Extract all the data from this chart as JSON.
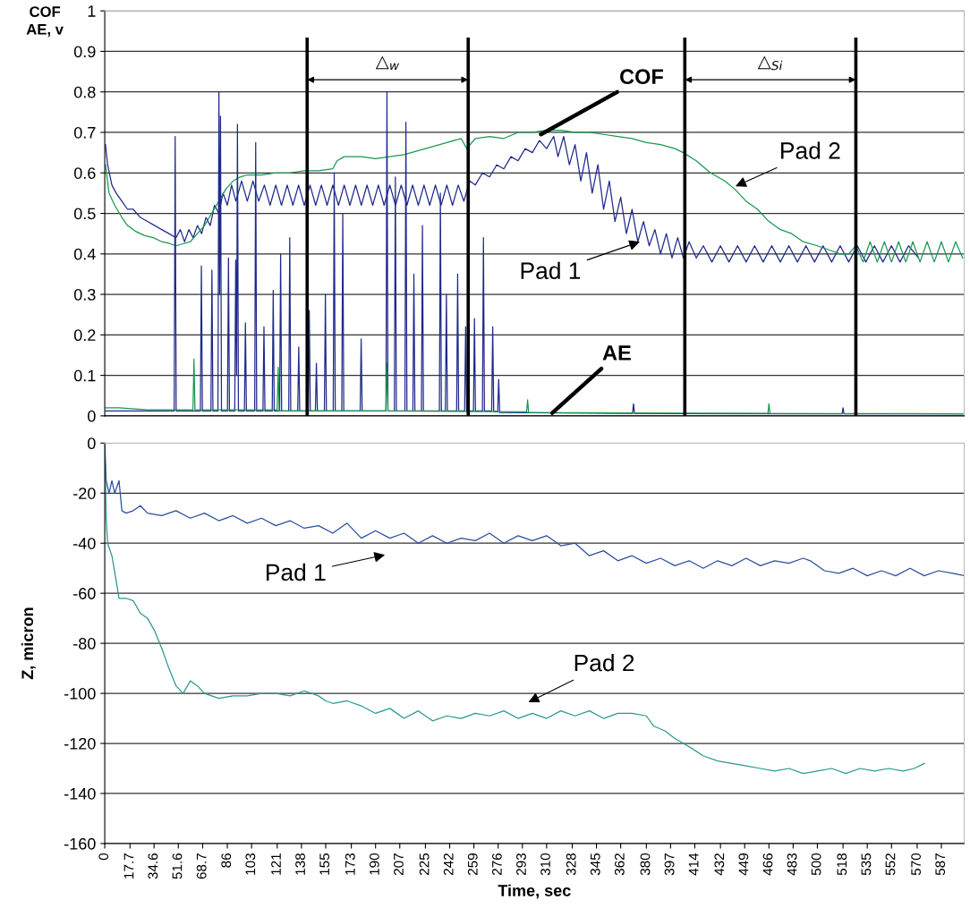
{
  "chart_data": [
    {
      "type": "line",
      "ylabel": "COF\nAE, v",
      "xlim": [
        0,
        603
      ],
      "ylim": [
        0,
        1
      ],
      "yticks": [
        0,
        0.1,
        0.2,
        0.3,
        0.4,
        0.5,
        0.6,
        0.7,
        0.8,
        0.9,
        1
      ],
      "xticks": [
        0,
        17.7,
        34.6,
        51.6,
        68.7,
        86,
        103,
        121,
        138,
        155,
        173,
        190,
        207,
        225,
        242,
        259,
        276,
        293,
        310,
        328,
        345,
        362,
        380,
        397,
        414,
        432,
        449,
        466,
        483,
        500,
        518,
        535,
        552,
        570,
        587
      ],
      "tick_labels": "y",
      "grid": "y",
      "legend": false,
      "marker": "none",
      "line_style": "solid",
      "series": [
        {
          "color": "#1f2a8a",
          "x": [
            0.5,
            2,
            5,
            8,
            12,
            16,
            20,
            25,
            30,
            35,
            40,
            45,
            50,
            53,
            56,
            59,
            62,
            65,
            68,
            71,
            74,
            77,
            80,
            83,
            86,
            89,
            92,
            96,
            100,
            104,
            108,
            112,
            116,
            120,
            124,
            128,
            132,
            136,
            140,
            144,
            148,
            152,
            156,
            160,
            164,
            168,
            172,
            176,
            180,
            184,
            188,
            192,
            196,
            200,
            204,
            208,
            212,
            216,
            220,
            224,
            228,
            232,
            236,
            240,
            244,
            248,
            252,
            256,
            260,
            265,
            270,
            275,
            280,
            285,
            290,
            295,
            300,
            305,
            310,
            315,
            318,
            322,
            326,
            330,
            334,
            338,
            342,
            346,
            350,
            354,
            358,
            362,
            366,
            370,
            374,
            378,
            382,
            386,
            390,
            394,
            398,
            402,
            406,
            410,
            415,
            420,
            426,
            432,
            438,
            444,
            450,
            456,
            462,
            468,
            474,
            480,
            486,
            492,
            498,
            504,
            510,
            516,
            522,
            528,
            534,
            540,
            546,
            552,
            558,
            564,
            571
          ],
          "values": [
            0.67,
            0.62,
            0.57,
            0.55,
            0.53,
            0.51,
            0.51,
            0.49,
            0.48,
            0.47,
            0.46,
            0.45,
            0.44,
            0.46,
            0.43,
            0.46,
            0.44,
            0.47,
            0.45,
            0.49,
            0.47,
            0.52,
            0.5,
            0.55,
            0.52,
            0.57,
            0.53,
            0.58,
            0.53,
            0.58,
            0.53,
            0.57,
            0.52,
            0.57,
            0.52,
            0.57,
            0.52,
            0.57,
            0.52,
            0.57,
            0.52,
            0.57,
            0.52,
            0.57,
            0.52,
            0.57,
            0.52,
            0.57,
            0.52,
            0.57,
            0.52,
            0.57,
            0.52,
            0.57,
            0.52,
            0.57,
            0.52,
            0.57,
            0.52,
            0.57,
            0.52,
            0.57,
            0.52,
            0.57,
            0.52,
            0.57,
            0.53,
            0.58,
            0.57,
            0.6,
            0.59,
            0.62,
            0.61,
            0.64,
            0.63,
            0.66,
            0.65,
            0.68,
            0.66,
            0.69,
            0.64,
            0.69,
            0.62,
            0.67,
            0.58,
            0.65,
            0.55,
            0.62,
            0.51,
            0.58,
            0.48,
            0.54,
            0.45,
            0.51,
            0.43,
            0.48,
            0.42,
            0.46,
            0.4,
            0.45,
            0.39,
            0.44,
            0.39,
            0.43,
            0.39,
            0.42,
            0.38,
            0.42,
            0.38,
            0.42,
            0.38,
            0.42,
            0.38,
            0.42,
            0.38,
            0.42,
            0.38,
            0.42,
            0.38,
            0.42,
            0.38,
            0.42,
            0.38,
            0.42,
            0.38,
            0.42,
            0.38,
            0.42,
            0.38,
            0.42,
            0.39
          ]
        },
        {
          "color": "#1a9850",
          "x": [
            0.5,
            3,
            7,
            12,
            16,
            22,
            28,
            34,
            40,
            46,
            50,
            55,
            60,
            65,
            70,
            75,
            80,
            85,
            90,
            95,
            100,
            110,
            120,
            130,
            140,
            150,
            160,
            163,
            168,
            180,
            190,
            200,
            210,
            220,
            230,
            240,
            250,
            254,
            260,
            270,
            280,
            290,
            300,
            310,
            320,
            330,
            340,
            350,
            360,
            370,
            380,
            390,
            400,
            406,
            415,
            425,
            435,
            442,
            450,
            458,
            466,
            474,
            482,
            490,
            500,
            508,
            516,
            522,
            527,
            532,
            537,
            542,
            547,
            552,
            557,
            562,
            567,
            572,
            577,
            582,
            587,
            592,
            597,
            602
          ],
          "values": [
            0.62,
            0.55,
            0.52,
            0.49,
            0.47,
            0.455,
            0.445,
            0.44,
            0.43,
            0.425,
            0.42,
            0.425,
            0.43,
            0.45,
            0.47,
            0.5,
            0.53,
            0.56,
            0.58,
            0.59,
            0.595,
            0.595,
            0.6,
            0.6,
            0.605,
            0.605,
            0.61,
            0.63,
            0.64,
            0.64,
            0.635,
            0.64,
            0.645,
            0.655,
            0.665,
            0.675,
            0.685,
            0.66,
            0.685,
            0.69,
            0.685,
            0.7,
            0.7,
            0.705,
            0.705,
            0.7,
            0.7,
            0.695,
            0.69,
            0.685,
            0.675,
            0.67,
            0.66,
            0.65,
            0.63,
            0.6,
            0.58,
            0.56,
            0.53,
            0.51,
            0.48,
            0.46,
            0.45,
            0.43,
            0.42,
            0.41,
            0.4,
            0.4,
            0.42,
            0.38,
            0.43,
            0.38,
            0.43,
            0.38,
            0.43,
            0.38,
            0.43,
            0.38,
            0.43,
            0.38,
            0.43,
            0.38,
            0.43,
            0.39
          ]
        },
        {
          "color": "#1f2a8a",
          "x": [
            0.5,
            48.7,
            49.4,
            50.1,
            67.1,
            67.8,
            68.5,
            74.5,
            75.2,
            75.9,
            79.4,
            80.1,
            80.6,
            81.2,
            81.9,
            86.1,
            86.8,
            87.5,
            91.2,
            91.9,
            92.5,
            93.1,
            93.8,
            98,
            98.7,
            99.4,
            105.2,
            105.9,
            106.6,
            111,
            111.7,
            112.4,
            117.5,
            118.2,
            118.9,
            122.7,
            123.4,
            124.1,
            129.1,
            129.8,
            130.5,
            135.4,
            136.1,
            136.8,
            142.8,
            143.5,
            144.2,
            147.8,
            148.5,
            149.2,
            154.1,
            154.8,
            155.5,
            160.3,
            161,
            161.7,
            166.3,
            167,
            167.7,
            179.2,
            179.9,
            180.6,
            197.3,
            198,
            198.7,
            203.2,
            203.9,
            204.6,
            210.6,
            211.3,
            212,
            216.2,
            216.9,
            217.6,
            222.2,
            222.9,
            223.6,
            234.8,
            235.5,
            236.2,
            239,
            239.7,
            240.4,
            246.9,
            247.6,
            248.3,
            252.5,
            253.2,
            253.9,
            258.7,
            259.4,
            260.1,
            265,
            265.7,
            266.4,
            271.5,
            272.2,
            272.9,
            275.7,
            276.4,
            277.1,
            370.3,
            371,
            371.7,
            517.3,
            518,
            518.7,
            602
          ],
          "values": [
            0.012,
            0.012,
            0.69,
            0.012,
            0.012,
            0.37,
            0.012,
            0.012,
            0.36,
            0.012,
            0.012,
            0.8,
            0.3,
            0.74,
            0.012,
            0.012,
            0.39,
            0.012,
            0.012,
            0.385,
            0.1,
            0.72,
            0.012,
            0.012,
            0.23,
            0.012,
            0.012,
            0.675,
            0.012,
            0.012,
            0.22,
            0.012,
            0.012,
            0.31,
            0.012,
            0.012,
            0.4,
            0.012,
            0.012,
            0.44,
            0.012,
            0.012,
            0.17,
            0.012,
            0.012,
            0.26,
            0.012,
            0.012,
            0.13,
            0.012,
            0.012,
            0.3,
            0.012,
            0.012,
            0.6,
            0.012,
            0.012,
            0.5,
            0.012,
            0.012,
            0.19,
            0.012,
            0.012,
            0.8,
            0.012,
            0.012,
            0.59,
            0.012,
            0.012,
            0.725,
            0.012,
            0.012,
            0.35,
            0.012,
            0.012,
            0.47,
            0.012,
            0.012,
            0.55,
            0.012,
            0.012,
            0.3,
            0.012,
            0.012,
            0.35,
            0.012,
            0.012,
            0.22,
            0.012,
            0.012,
            0.24,
            0.012,
            0.012,
            0.44,
            0.012,
            0.012,
            0.22,
            0.012,
            0.01,
            0.09,
            0.008,
            0.006,
            0.03,
            0.006,
            0.005,
            0.02,
            0.005,
            0.005
          ]
        },
        {
          "color": "#1a9850",
          "x": [
            0.5,
            10,
            30,
            61.9,
            62.6,
            63.3,
            121,
            121.7,
            122.4,
            197.3,
            198,
            198.7,
            296,
            296.7,
            297.4,
            465.3,
            466,
            466.7,
            602
          ],
          "values": [
            0.02,
            0.02,
            0.015,
            0.015,
            0.14,
            0.015,
            0.015,
            0.12,
            0.012,
            0.012,
            0.13,
            0.012,
            0.01,
            0.04,
            0.008,
            0.006,
            0.03,
            0.006,
            0.005
          ]
        }
      ],
      "ref_lines": [
        {
          "axis": "x",
          "value": 142,
          "color": "#000000"
        },
        {
          "axis": "x",
          "value": 255,
          "color": "#000000"
        },
        {
          "axis": "x",
          "value": 407,
          "color": "#000000"
        },
        {
          "axis": "x",
          "value": 527,
          "color": "#000000"
        }
      ],
      "annotations": [
        "△$_{w}$",
        "△$_{Si}$",
        {
          "text": "COF",
          "x": 306,
          "y": 0.695
        },
        {
          "text": "AE",
          "x": 314,
          "y": 0.007
        },
        {
          "text": "Pad 2",
          "x": 442.6,
          "y": 0.567
        },
        {
          "text": "Pad 1",
          "x": 375.4,
          "y": 0.43
        }
      ]
    },
    {
      "type": "line",
      "xlabel": "Time, sec",
      "ylabel": "Z, micron",
      "xlim": [
        0,
        603
      ],
      "ylim": [
        -160,
        0
      ],
      "yticks": [
        -160,
        -140,
        -120,
        -100,
        -80,
        -60,
        -40,
        -20,
        0
      ],
      "xticks": [
        0,
        17.7,
        34.6,
        51.6,
        68.7,
        86,
        103,
        121,
        138,
        155,
        173,
        190,
        207,
        225,
        242,
        259,
        276,
        293,
        310,
        328,
        345,
        362,
        380,
        397,
        414,
        432,
        449,
        466,
        483,
        500,
        518,
        535,
        552,
        570,
        587
      ],
      "grid": "y",
      "legend": false,
      "marker": "none",
      "line_style": "solid",
      "series": [
        {
          "color": "#2a4f9e",
          "x": [
            0,
            1,
            3,
            5,
            7,
            10,
            12,
            15,
            20,
            25,
            30,
            40,
            50,
            60,
            70,
            80,
            90,
            100,
            110,
            120,
            130,
            140,
            150,
            160,
            170,
            180,
            190,
            200,
            210,
            220,
            230,
            240,
            250,
            260,
            270,
            280,
            290,
            300,
            310,
            320,
            330,
            340,
            350,
            360,
            370,
            380,
            390,
            400,
            410,
            420,
            430,
            440,
            450,
            460,
            470,
            480,
            490,
            495,
            505,
            515,
            525,
            535,
            545,
            555,
            565,
            575,
            585,
            595,
            603
          ],
          "values": [
            0,
            -15,
            -20,
            -15,
            -20,
            -15,
            -27,
            -28,
            -27,
            -25,
            -28,
            -29,
            -27,
            -30,
            -28,
            -31,
            -29,
            -32,
            -30,
            -33,
            -31,
            -34,
            -33,
            -36,
            -32,
            -38,
            -35,
            -38,
            -36,
            -40,
            -37,
            -40,
            -38,
            -39,
            -36,
            -40,
            -37,
            -39,
            -37,
            -41,
            -40,
            -45,
            -43,
            -47,
            -45,
            -48,
            -46,
            -49,
            -47,
            -50,
            -47,
            -49,
            -46,
            -49,
            -47,
            -48,
            -46,
            -47,
            -51,
            -52,
            -50,
            -53,
            -51,
            -53,
            -50,
            -53,
            -51,
            -52,
            -53
          ]
        },
        {
          "color": "#2a9a8c",
          "x": [
            0,
            1,
            2,
            5,
            8,
            10,
            15,
            20,
            25,
            30,
            35,
            40,
            45,
            50,
            55,
            60,
            65,
            70,
            80,
            90,
            100,
            110,
            120,
            130,
            140,
            150,
            155,
            160,
            170,
            180,
            190,
            200,
            210,
            220,
            230,
            240,
            250,
            260,
            270,
            280,
            290,
            300,
            310,
            320,
            330,
            340,
            350,
            360,
            370,
            380,
            385,
            393,
            400,
            406,
            412,
            420,
            430,
            440,
            450,
            460,
            470,
            480,
            490,
            500,
            510,
            520,
            530,
            540,
            550,
            560,
            568,
            575
          ],
          "values": [
            0,
            -30,
            -40,
            -45,
            -55,
            -62,
            -62,
            -63,
            -68,
            -70,
            -75,
            -82,
            -90,
            -97,
            -100,
            -95,
            -97,
            -100,
            -102,
            -101,
            -101,
            -100,
            -100,
            -101,
            -99,
            -101,
            -103,
            -104,
            -103,
            -105,
            -108,
            -106,
            -110,
            -107,
            -111,
            -109,
            -110,
            -108,
            -109,
            -107,
            -110,
            -108,
            -110,
            -107,
            -109,
            -107,
            -110,
            -108,
            -108,
            -109,
            -113,
            -115,
            -118,
            -120,
            -122,
            -125,
            -127,
            -128,
            -129,
            -130,
            -131,
            -130,
            -132,
            -131,
            -130,
            -132,
            -130,
            -131,
            -130,
            -131,
            -130,
            -128
          ]
        }
      ],
      "annotations": [
        "Pad 1",
        "Pad 2"
      ]
    }
  ]
}
